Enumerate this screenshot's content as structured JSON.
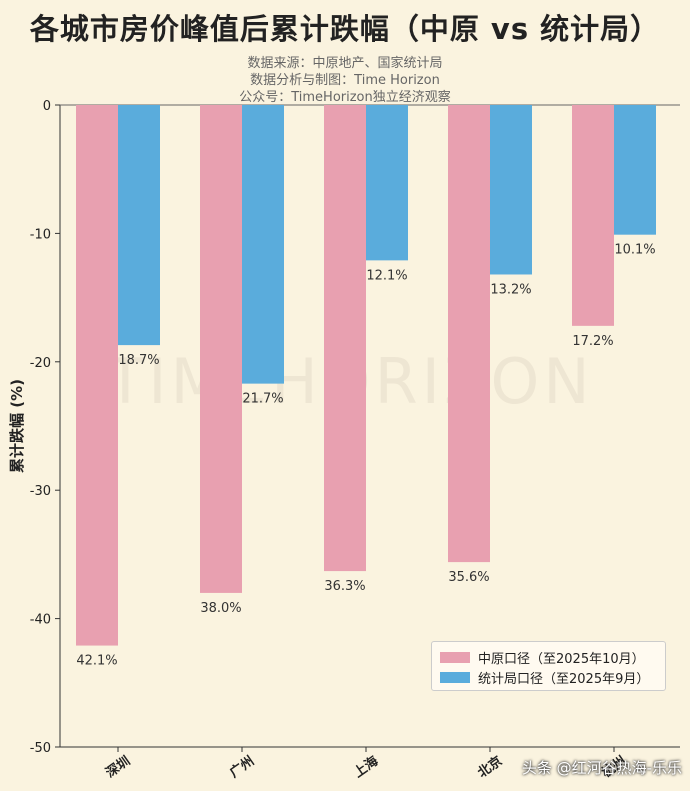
{
  "chart_data": {
    "type": "bar",
    "title": "各城市房价峰值后累计跌幅（中原 vs 统计局）",
    "subtitles": [
      "数据来源：中原地产、国家统计局",
      "数据分析与制图：Time Horizon",
      "公众号：TimeHorizon独立经济观察"
    ],
    "ylabel": "累计跌幅 (%)",
    "xlabel": "",
    "categories": [
      "深圳",
      "广州",
      "上海",
      "北京",
      "杭州"
    ],
    "series": [
      {
        "name": "中原口径（至2025年10月）",
        "color": "#e8a0b0",
        "values": [
          -42.1,
          -38.0,
          -36.3,
          -35.6,
          -17.2
        ],
        "labels": [
          "42.1%",
          "38.0%",
          "36.3%",
          "35.6%",
          "17.2%"
        ]
      },
      {
        "name": "统计局口径（至2025年9月）",
        "color": "#5aacdc",
        "values": [
          -18.7,
          -21.7,
          -12.1,
          -13.2,
          -10.1
        ],
        "labels": [
          "18.7%",
          "21.7%",
          "12.1%",
          "13.2%",
          "10.1%"
        ]
      }
    ],
    "ylim": [
      -50,
      0
    ],
    "yticks": [
      0,
      -10,
      -20,
      -30,
      -40,
      -50
    ],
    "grid": false,
    "legend": "bottom-right",
    "watermark": "TIMEHORIZON"
  },
  "credit": "头条 @红河谷热海-乐乐"
}
